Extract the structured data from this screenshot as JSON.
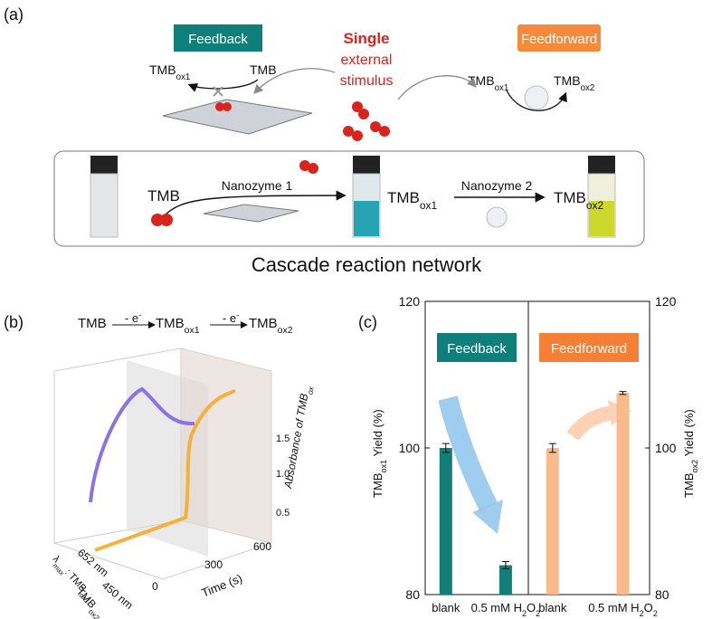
{
  "panel_labels": [
    "(a)",
    "(b)",
    "(c)"
  ],
  "panel_a": {
    "feedback": "Feedback",
    "feedforward": "Feedforward",
    "stimulus": [
      "Single",
      "external",
      "stimulus"
    ],
    "feedback_product": [
      "TMB",
      "ox1"
    ],
    "feedback_substrate": "TMB",
    "feedforward_substrate": [
      "TMB",
      "ox1"
    ],
    "feedforward_product": [
      "TMB",
      "ox2"
    ],
    "cascade": {
      "start": "TMB",
      "step1": "Nanozyme 1",
      "mid": [
        "TMB",
        "ox1"
      ],
      "step2": "Nanozyme 2",
      "end": [
        "TMB",
        "ox2"
      ]
    },
    "caption": "Cascade reaction network"
  },
  "panel_b": {
    "scheme": {
      "start": "TMB",
      "step1": {
        "text": "- e",
        "sup": "-"
      },
      "mid": [
        "TMB",
        "ox1"
      ],
      "step2": {
        "text": "- e",
        "sup": "-"
      },
      "end": [
        "TMB",
        "ox2"
      ]
    },
    "z_label": [
      "Absorbance of TMB",
      "ox"
    ],
    "z_ticks": [
      "0.5",
      "1.0",
      "1.5"
    ],
    "x_label": "Time (s)",
    "x_ticks": [
      "0",
      "300",
      "600"
    ],
    "wavelengths": [
      "652 nm",
      "450 nm"
    ],
    "y_label_1": [
      "λ",
      "max",
      ": TMB",
      "ox1"
    ],
    "y_label_2": [
      "TMB",
      "ox2"
    ]
  },
  "chart_data": {
    "type": "bar",
    "categories": [
      [
        "blank"
      ],
      [
        "0.5 mM H",
        "2",
        "O",
        "2"
      ]
    ],
    "series": [
      {
        "name": "Feedback",
        "color": "#137e78",
        "badge_color": "#0e7f7a",
        "values": [
          100,
          84
        ],
        "errors": [
          0.6,
          0.5
        ]
      },
      {
        "name": "Feedforward",
        "color": "#fbba8b",
        "badge_color": "#f47f35",
        "axis": "y2",
        "values": [
          100,
          107.5
        ],
        "errors": [
          0.6,
          0.2
        ]
      }
    ],
    "ylabel": [
      "TMB",
      "ox1",
      " Yield (%)"
    ],
    "y2label": [
      "TMB",
      "ox2",
      " Yield (%)"
    ],
    "ylim": [
      80,
      120
    ],
    "yticks": [
      80,
      100,
      120
    ],
    "y2lim": [
      80,
      120
    ],
    "y2ticks": [
      80,
      100,
      120
    ]
  }
}
